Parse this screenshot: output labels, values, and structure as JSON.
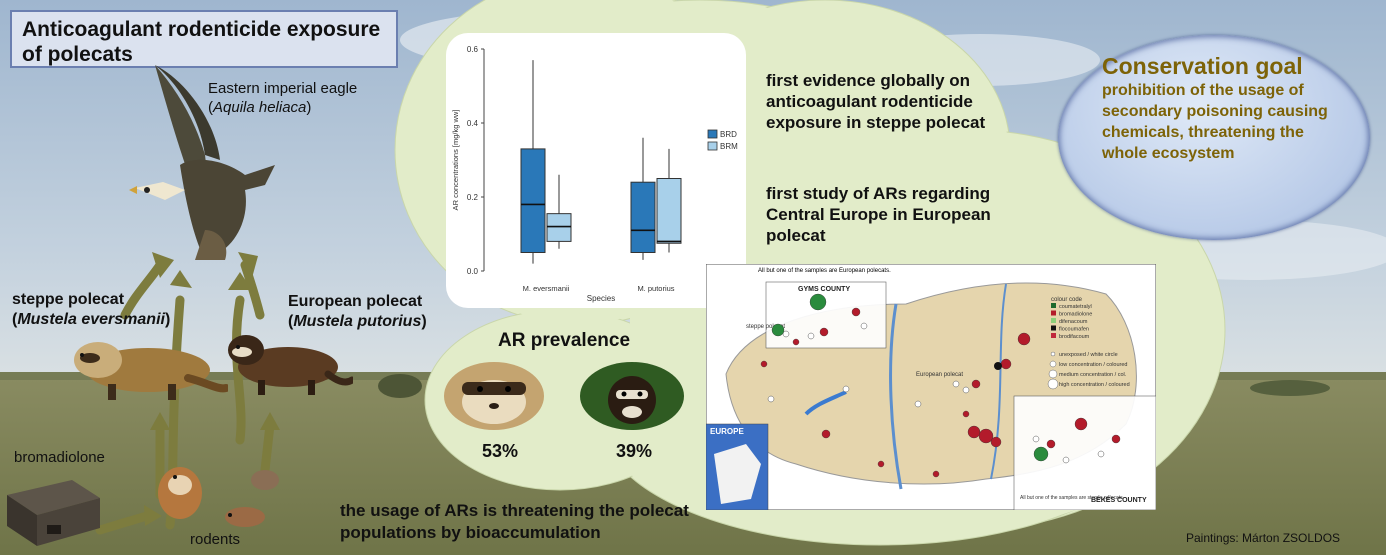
{
  "title": "Anticoagulant rodenticide exposure of polecats",
  "eagle": {
    "common": "Eastern imperial eagle",
    "latin": "Aquila heliaca"
  },
  "steppe_polecat": {
    "common": "steppe polecat",
    "latin": "Mustela eversmanii"
  },
  "european_polecat": {
    "common": "European polecat",
    "latin": "Mustela putorius"
  },
  "bromadiolone_label": "bromadiolone",
  "rodents_label": "rodents",
  "findings": {
    "first": "first evidence globally on anticoagulant rodenticide exposure in steppe polecat",
    "second": "first study of ARs regarding Central Europe in European polecat"
  },
  "conservation": {
    "heading": "Conservation goal",
    "text": "prohibition of the usage of secondary poisoning causing chemicals, threatening the whole ecosystem"
  },
  "prevalence": {
    "heading": "AR prevalence",
    "steppe": "53%",
    "european": "39%"
  },
  "bottom_message": "the usage of ARs is threatening the polecat populations by bioaccumulation",
  "credit": "Paintings: Márton ZSOLDOS",
  "chart_data": {
    "type": "box",
    "ylabel": "AR concentrations [mg/kg ww]",
    "xlabel": "Species",
    "categories": [
      "M. eversmanii",
      "M. putorius"
    ],
    "ylim": [
      0,
      0.6
    ],
    "yticks": [
      "0.0",
      "0.2",
      "0.4",
      "0.6"
    ],
    "legend_placement": "right",
    "series": [
      {
        "name": "BRD",
        "color": "#2a78b8",
        "boxes": [
          {
            "min": 0.02,
            "q1": 0.05,
            "median": 0.18,
            "q3": 0.33,
            "max": 0.57
          },
          {
            "min": 0.03,
            "q1": 0.05,
            "median": 0.11,
            "q3": 0.24,
            "max": 0.36
          }
        ]
      },
      {
        "name": "BRM",
        "color": "#a8d0ea",
        "boxes": [
          {
            "min": 0.06,
            "q1": 0.08,
            "median": 0.12,
            "q3": 0.155,
            "max": 0.26
          },
          {
            "min": 0.05,
            "q1": 0.075,
            "median": 0.08,
            "q3": 0.25,
            "max": 0.33
          }
        ]
      }
    ]
  },
  "map": {
    "county_top": "GYMS COUNTY",
    "county_bottom": "BÉKÉS COUNTY",
    "inset": "EUROPE",
    "note_top": "All but one of the samples are European polecats.",
    "note_bottom": "All but one of the samples are steppe polecats.",
    "region_steppe": "steppe polecat",
    "region_european": "European polecat",
    "colour_code_title": "colour code",
    "colour_code": [
      {
        "label": "coumatetralyl",
        "color": "#1c6a2e"
      },
      {
        "label": "bromadiolone",
        "color": "#b31b2b"
      },
      {
        "label": "difenacoum",
        "color": "#8ccf7a"
      },
      {
        "label": "flocoumafen",
        "color": "#111111"
      },
      {
        "label": "brodifacoum",
        "color": "#c0293c"
      }
    ],
    "size_code": [
      "unexposed / white circle",
      "low concentration / coloured",
      "medium concentration / col.",
      "high concentration / coloured"
    ]
  }
}
